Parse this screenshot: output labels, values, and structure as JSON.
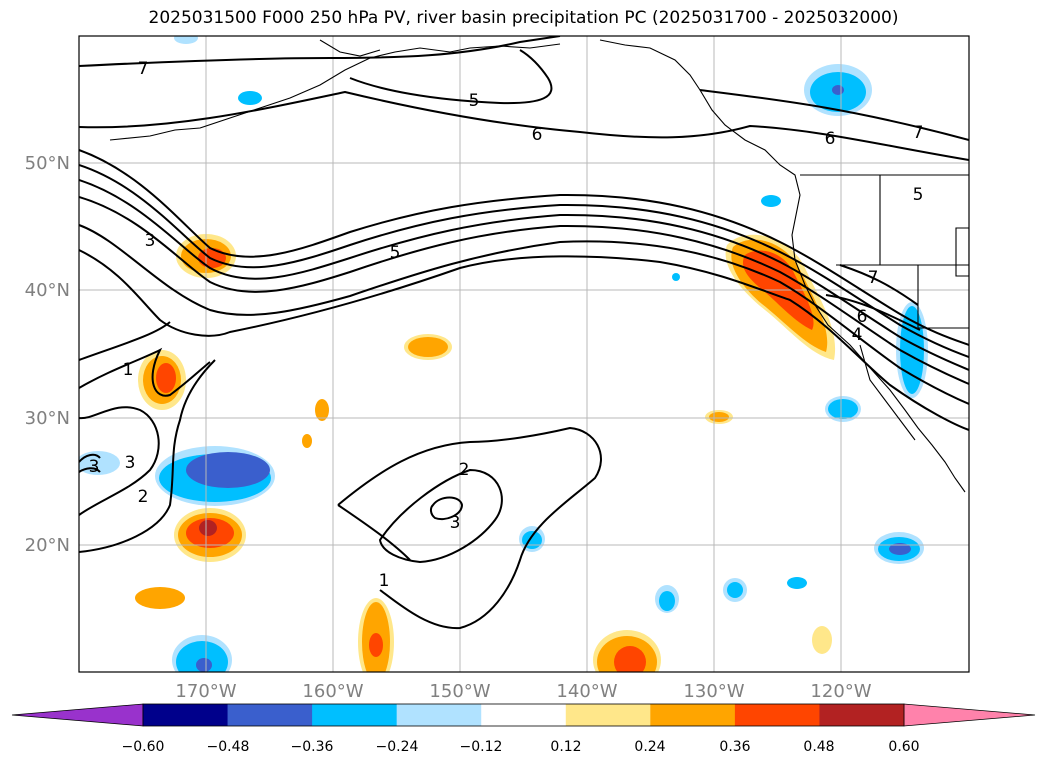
{
  "title": "2025031500 F000 250 hPa PV, river basin precipitation PC (2025031700 - 2025032000)",
  "map": {
    "lon_ticks": [
      "170°W",
      "160°W",
      "150°W",
      "140°W",
      "130°W",
      "120°W"
    ],
    "lat_ticks": [
      "50°N",
      "40°N",
      "30°N",
      "20°N"
    ],
    "contour_labels": [
      "7",
      "5",
      "6",
      "6",
      "7",
      "5",
      "3",
      "5",
      "7",
      "6",
      "4",
      "1",
      "2",
      "2",
      "3",
      "1",
      "3",
      "3"
    ],
    "grid": true
  },
  "colorbar": {
    "tick_labels": [
      "−0.60",
      "−0.48",
      "−0.36",
      "−0.24",
      "−0.12",
      "0.12",
      "0.24",
      "0.36",
      "0.48",
      "0.60"
    ],
    "colors": {
      "under": "#9932cc",
      "bins": [
        "#00008b",
        "#3a5fcd",
        "#00bfff",
        "#b0e2ff",
        "#ffffff",
        "#ffe78a",
        "#ffa500",
        "#ff4500",
        "#b22222"
      ],
      "over": "#ff82ab"
    }
  }
}
